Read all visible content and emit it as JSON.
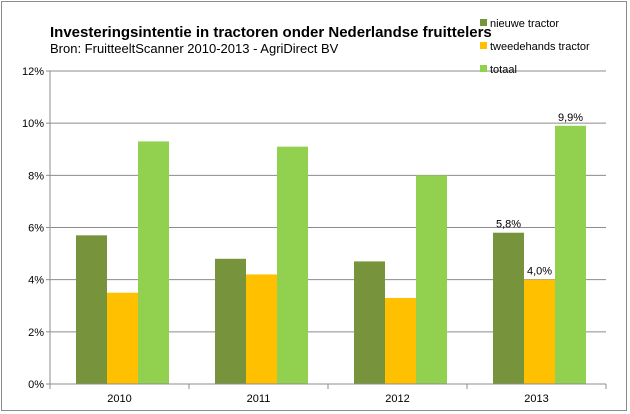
{
  "chart_data": {
    "type": "bar",
    "title": "Investeringsintentie in tractoren onder Nederlandse fruittelers",
    "subtitle": "Bron: FruitteeltScanner 2010-2013 - AgriDirect BV",
    "categories": [
      "2010",
      "2011",
      "2012",
      "2013"
    ],
    "series": [
      {
        "name": "nieuwe tractor",
        "values": [
          5.7,
          4.8,
          4.7,
          5.8
        ],
        "color": "#77933c"
      },
      {
        "name": "tweedehands tractor",
        "values": [
          3.5,
          4.2,
          3.3,
          4.0
        ],
        "color": "#ffc000"
      },
      {
        "name": "totaal",
        "values": [
          9.3,
          9.1,
          8.0,
          9.9
        ],
        "color": "#92d050"
      }
    ],
    "ylim": [
      0,
      12
    ],
    "yticks": [
      "0%",
      "2%",
      "4%",
      "6%",
      "8%",
      "10%",
      "12%"
    ],
    "grid": true,
    "legend_position": "top-right",
    "data_labels": [
      {
        "category": "2013",
        "series": "nieuwe tractor",
        "text": "5,8%"
      },
      {
        "category": "2013",
        "series": "tweedehands tractor",
        "text": "4,0%"
      },
      {
        "category": "2013",
        "series": "totaal",
        "text": "9,9%"
      }
    ]
  }
}
